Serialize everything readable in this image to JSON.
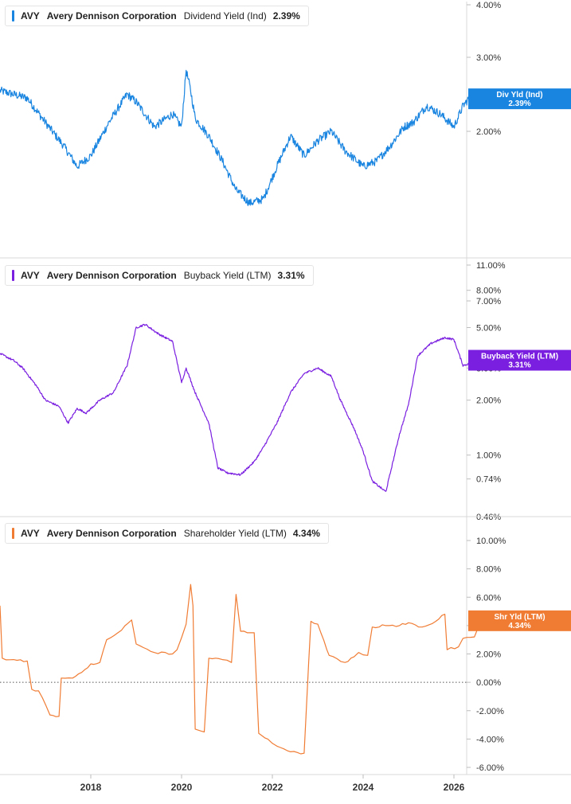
{
  "chart_data": [
    {
      "type": "line",
      "ticker": "AVY",
      "company": "Avery Dennison Corporation",
      "metric": "Dividend Yield (Ind)",
      "legend_value": "2.39%",
      "color": "#1a85e0",
      "badge": {
        "label": "Div Yld (Ind)",
        "value": "2.39%"
      },
      "y_scale": "log",
      "ylim": [
        1.0,
        4.0
      ],
      "y_ticks": [
        {
          "v": 4.0,
          "label": "4.00%"
        },
        {
          "v": 3.0,
          "label": "3.00%"
        },
        {
          "v": 2.0,
          "label": "2.00%"
        }
      ],
      "x": [
        2016.0,
        2016.6,
        2017.0,
        2017.4,
        2017.7,
        2018.0,
        2018.4,
        2018.8,
        2019.0,
        2019.4,
        2019.8,
        2020.0,
        2020.1,
        2020.2,
        2020.3,
        2020.6,
        2020.9,
        2021.2,
        2021.5,
        2021.8,
        2022.1,
        2022.4,
        2022.7,
        2023.0,
        2023.3,
        2023.6,
        2024.0,
        2024.3,
        2024.6,
        2024.9,
        2025.1,
        2025.4,
        2025.7,
        2026.0,
        2026.2,
        2026.4,
        2026.6,
        2026.75
      ],
      "values": [
        2.5,
        2.4,
        2.1,
        1.85,
        1.65,
        1.75,
        2.1,
        2.45,
        2.35,
        2.05,
        2.2,
        2.05,
        2.8,
        2.5,
        2.15,
        1.95,
        1.7,
        1.45,
        1.35,
        1.38,
        1.65,
        1.95,
        1.75,
        1.9,
        2.0,
        1.8,
        1.65,
        1.7,
        1.85,
        2.05,
        2.1,
        2.3,
        2.2,
        2.05,
        2.3,
        2.45,
        2.35,
        2.39
      ]
    },
    {
      "type": "line",
      "ticker": "AVY",
      "company": "Avery Dennison Corporation",
      "metric": "Buyback Yield (LTM)",
      "legend_value": "3.31%",
      "color": "#7a1fe0",
      "badge": {
        "label": "Buyback Yield (LTM)",
        "value": "3.31%"
      },
      "y_scale": "log",
      "ylim": [
        0.46,
        11.0
      ],
      "y_ticks": [
        {
          "v": 11.0,
          "label": "11.00%"
        },
        {
          "v": 8.0,
          "label": "8.00%"
        },
        {
          "v": 7.0,
          "label": "7.00%"
        },
        {
          "v": 5.0,
          "label": "5.00%"
        },
        {
          "v": 3.0,
          "label": "3.00%"
        },
        {
          "v": 2.0,
          "label": "2.00%"
        },
        {
          "v": 1.0,
          "label": "1.00%"
        },
        {
          "v": 0.74,
          "label": "0.74%"
        },
        {
          "v": 0.46,
          "label": "0.46%"
        }
      ],
      "x": [
        2016.0,
        2016.3,
        2016.5,
        2016.8,
        2017.0,
        2017.3,
        2017.5,
        2017.7,
        2017.9,
        2018.2,
        2018.5,
        2018.8,
        2019.0,
        2019.2,
        2019.5,
        2019.8,
        2020.0,
        2020.1,
        2020.3,
        2020.6,
        2020.8,
        2021.0,
        2021.3,
        2021.6,
        2021.8,
        2022.1,
        2022.4,
        2022.7,
        2023.0,
        2023.3,
        2023.5,
        2023.8,
        2024.0,
        2024.2,
        2024.5,
        2024.8,
        2025.0,
        2025.2,
        2025.5,
        2025.8,
        2026.0,
        2026.2,
        2026.4,
        2026.6,
        2026.75
      ],
      "values": [
        3.6,
        3.3,
        3.0,
        2.4,
        2.0,
        1.85,
        1.5,
        1.8,
        1.7,
        2.0,
        2.2,
        3.1,
        5.0,
        5.2,
        4.6,
        4.2,
        2.5,
        3.0,
        2.2,
        1.5,
        0.85,
        0.8,
        0.78,
        0.92,
        1.1,
        1.5,
        2.2,
        2.8,
        3.0,
        2.7,
        2.0,
        1.4,
        1.05,
        0.72,
        0.63,
        1.3,
        1.9,
        3.5,
        4.1,
        4.4,
        4.3,
        3.1,
        3.2,
        3.25,
        3.31
      ]
    },
    {
      "type": "line",
      "ticker": "AVY",
      "company": "Avery Dennison Corporation",
      "metric": "Shareholder Yield (LTM)",
      "legend_value": "4.34%",
      "color": "#f07c34",
      "badge": {
        "label": "Shr Yld (LTM)",
        "value": "4.34%"
      },
      "y_scale": "linear",
      "ylim": [
        -6.0,
        10.0
      ],
      "y_ticks": [
        {
          "v": 10,
          "label": "10.00%"
        },
        {
          "v": 8,
          "label": "8.00%"
        },
        {
          "v": 6,
          "label": "6.00%"
        },
        {
          "v": 4,
          "label": "4.00%"
        },
        {
          "v": 2,
          "label": "2.00%"
        },
        {
          "v": 0,
          "label": "0.00%"
        },
        {
          "v": -2,
          "label": "-2.00%"
        },
        {
          "v": -4,
          "label": "-4.00%"
        },
        {
          "v": -6,
          "label": "-6.00%"
        }
      ],
      "zero_line": true,
      "x": [
        2016.0,
        2016.05,
        2016.3,
        2016.6,
        2016.7,
        2016.85,
        2017.1,
        2017.3,
        2017.35,
        2017.6,
        2017.8,
        2018.0,
        2018.2,
        2018.35,
        2018.6,
        2018.9,
        2019.0,
        2019.4,
        2019.8,
        2019.9,
        2020.1,
        2020.2,
        2020.25,
        2020.3,
        2020.5,
        2020.6,
        2020.9,
        2021.1,
        2021.2,
        2021.3,
        2021.6,
        2021.7,
        2021.9,
        2022.1,
        2022.4,
        2022.7,
        2022.8,
        2022.85,
        2023.0,
        2023.2,
        2023.25,
        2023.6,
        2023.8,
        2023.9,
        2024.1,
        2024.2,
        2024.5,
        2024.8,
        2025.0,
        2025.3,
        2025.6,
        2025.8,
        2025.85,
        2026.1,
        2026.2,
        2026.45,
        2026.55,
        2026.75
      ],
      "values": [
        5.4,
        1.7,
        1.6,
        1.5,
        -0.5,
        -0.6,
        -2.3,
        -2.4,
        0.3,
        0.3,
        0.7,
        1.3,
        1.4,
        3.0,
        3.5,
        4.4,
        2.7,
        2.1,
        2.0,
        2.3,
        4.1,
        6.9,
        5.4,
        -3.3,
        -3.5,
        1.7,
        1.6,
        1.4,
        6.2,
        3.6,
        3.5,
        -3.6,
        -4.0,
        -4.5,
        -4.9,
        -5.0,
        1.4,
        4.3,
        4.1,
        2.3,
        1.9,
        1.4,
        1.8,
        2.1,
        1.9,
        3.9,
        4.0,
        4.0,
        4.2,
        3.9,
        4.3,
        4.8,
        2.3,
        2.5,
        3.1,
        3.2,
        4.0,
        4.34
      ]
    }
  ],
  "x_axis": {
    "ticks": [
      {
        "v": 2018,
        "label": "2018"
      },
      {
        "v": 2020,
        "label": "2020"
      },
      {
        "v": 2022,
        "label": "2022"
      },
      {
        "v": 2024,
        "label": "2024"
      },
      {
        "v": 2026,
        "label": "2026"
      }
    ],
    "xlim": [
      2016.0,
      2027.0
    ]
  }
}
